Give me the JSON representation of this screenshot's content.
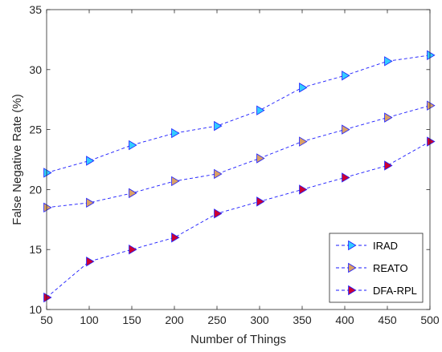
{
  "chart_data": {
    "type": "line",
    "xlabel": "Number of Things",
    "ylabel": "False Negative Rate (%)",
    "xlim": [
      50,
      500
    ],
    "ylim": [
      10,
      35
    ],
    "x_ticks": [
      50,
      100,
      150,
      200,
      250,
      300,
      350,
      400,
      450,
      500
    ],
    "y_ticks": [
      10,
      15,
      20,
      25,
      30,
      35
    ],
    "x": [
      50,
      100,
      150,
      200,
      250,
      300,
      350,
      400,
      450,
      500
    ],
    "grid": false,
    "legend_position": "bottom-right",
    "line_color": "#1a1aff",
    "series": [
      {
        "name": "IRAD",
        "marker_color": "#33ccff",
        "values": [
          21.4,
          22.4,
          23.7,
          24.7,
          25.3,
          26.6,
          28.5,
          29.5,
          30.7,
          31.2
        ]
      },
      {
        "name": "REATO",
        "marker_color": "#d9a066",
        "values": [
          18.5,
          18.9,
          19.7,
          20.7,
          21.3,
          22.6,
          24.0,
          25.0,
          26.0,
          27.0
        ]
      },
      {
        "name": "DFA-RPL",
        "marker_color": "#cc0033",
        "values": [
          11.0,
          14.0,
          15.0,
          16.0,
          18.0,
          19.0,
          20.0,
          21.0,
          22.0,
          24.0
        ]
      }
    ]
  }
}
